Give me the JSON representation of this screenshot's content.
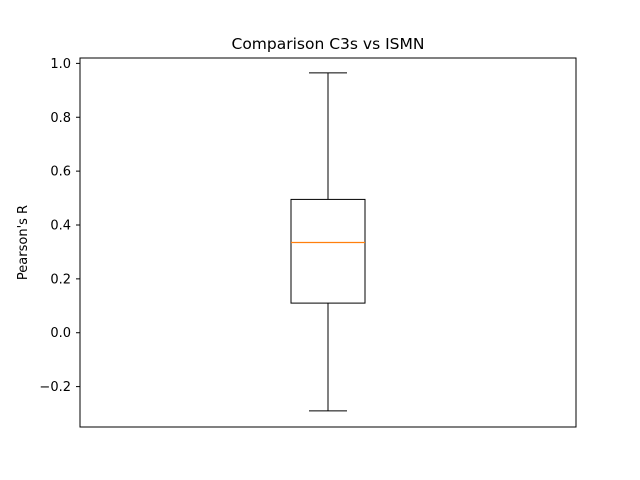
{
  "chart_data": {
    "type": "boxplot",
    "title": "Comparison C3s vs ISMN",
    "xlabel": "",
    "ylabel": "Pearson's R",
    "ylim": [
      -0.35,
      1.02
    ],
    "yticks": [
      -0.2,
      0.0,
      0.2,
      0.4,
      0.6,
      0.8,
      1.0
    ],
    "ytick_labels": [
      "−0.2",
      "0.0",
      "0.2",
      "0.4",
      "0.6",
      "0.8",
      "1.0"
    ],
    "xticks": [],
    "grid": false,
    "boxes": [
      {
        "whisker_low": -0.29,
        "q1": 0.11,
        "median": 0.335,
        "q3": 0.495,
        "whisker_high": 0.965
      }
    ],
    "colors": {
      "box": "#000000",
      "median": "#ff7f0e",
      "axes": "#000000",
      "background": "#ffffff"
    }
  }
}
